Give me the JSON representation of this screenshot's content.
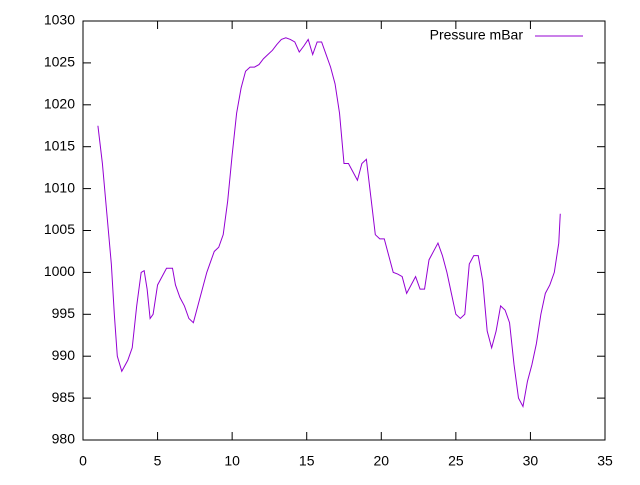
{
  "chart_data": {
    "type": "line",
    "x": [
      1,
      1.3,
      1.6,
      1.9,
      2.1,
      2.3,
      2.6,
      3.0,
      3.3,
      3.6,
      3.9,
      4.1,
      4.3,
      4.5,
      4.7,
      5.0,
      5.3,
      5.6,
      6.0,
      6.2,
      6.5,
      6.8,
      7.1,
      7.4,
      7.7,
      8.0,
      8.3,
      8.6,
      8.8,
      9.1,
      9.4,
      9.7,
      10.0,
      10.3,
      10.6,
      10.9,
      11.2,
      11.5,
      11.8,
      12.1,
      12.4,
      12.7,
      13.0,
      13.3,
      13.6,
      13.9,
      14.2,
      14.5,
      14.8,
      15.1,
      15.4,
      15.7,
      16.0,
      16.3,
      16.6,
      16.9,
      17.2,
      17.5,
      17.8,
      18.1,
      18.4,
      18.7,
      19.0,
      19.3,
      19.6,
      19.9,
      20.2,
      20.5,
      20.8,
      21.1,
      21.4,
      21.7,
      22.0,
      22.3,
      22.6,
      22.9,
      23.2,
      23.5,
      23.8,
      24.1,
      24.4,
      24.7,
      25.0,
      25.3,
      25.6,
      25.9,
      26.2,
      26.5,
      26.8,
      27.1,
      27.4,
      27.7,
      28.0,
      28.3,
      28.6,
      28.9,
      29.2,
      29.5,
      29.8,
      30.1,
      30.4,
      30.7,
      31.0,
      31.3,
      31.6,
      31.9,
      32.0
    ],
    "series": [
      {
        "name": "Pressure mBar",
        "color": "#9400d3",
        "values": [
          1017.5,
          1013,
          1007,
          1001,
          995,
          990,
          988.2,
          989.5,
          991,
          996,
          1000,
          1000.2,
          998,
          994.5,
          995,
          998.5,
          999.5,
          1000.5,
          1000.5,
          998.5,
          997,
          996,
          994.5,
          994,
          996,
          998,
          1000,
          1001.5,
          1002.5,
          1003,
          1004.5,
          1008.5,
          1014,
          1019,
          1022,
          1024,
          1024.5,
          1024.5,
          1024.8,
          1025.5,
          1026,
          1026.5,
          1027.2,
          1027.8,
          1028,
          1027.8,
          1027.5,
          1026.3,
          1027,
          1027.8,
          1026,
          1027.5,
          1027.5,
          1026,
          1024.5,
          1022.5,
          1019,
          1013,
          1013,
          1012,
          1011,
          1013,
          1013.5,
          1009,
          1004.5,
          1004,
          1004,
          1002,
          1000,
          999.8,
          999.5,
          997.5,
          998.5,
          999.5,
          998,
          998,
          1001.5,
          1002.5,
          1003.5,
          1002,
          1000,
          997.5,
          995,
          994.5,
          995,
          1001,
          1002,
          1002,
          999,
          993,
          991,
          993,
          996,
          995.5,
          994,
          989,
          985,
          984,
          987,
          989,
          991.5,
          995,
          997.5,
          998.5,
          1000,
          1003.5,
          1007
        ]
      }
    ],
    "xlim": [
      0,
      35
    ],
    "xticks": [
      0,
      5,
      10,
      15,
      20,
      25,
      30,
      35
    ],
    "ylim": [
      980,
      1030
    ],
    "yticks": [
      980,
      985,
      990,
      995,
      1000,
      1005,
      1010,
      1015,
      1020,
      1025,
      1030
    ],
    "grid": false,
    "legend": "top-right"
  }
}
